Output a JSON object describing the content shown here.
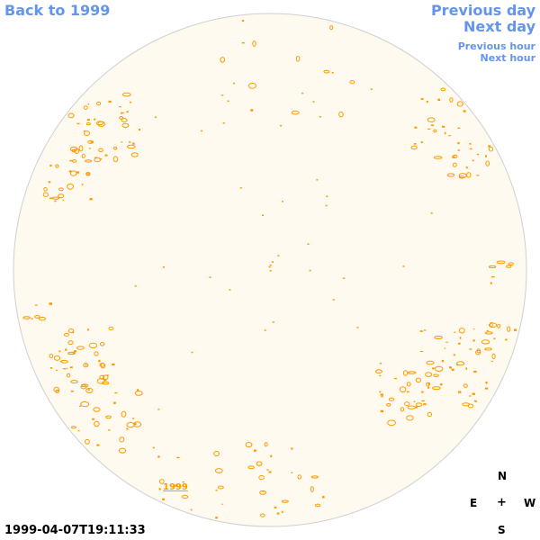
{
  "nav": {
    "back": "Back to 1999",
    "previous_day": "Previous day",
    "next_day": "Next day",
    "previous_hour": "Previous hour",
    "next_hour": "Next hour"
  },
  "map": {
    "year_label": "1999",
    "timestamp": "1999-04-07T19:11:33"
  },
  "compass": {
    "north": "N",
    "east": "E",
    "center": "+",
    "west": "W",
    "south": "S"
  },
  "colors": {
    "disk_fill": "#fffaf0",
    "disk_outline": "#cfcfcf",
    "feature_color": "#ff9900",
    "link_color": "#6495ed"
  }
}
